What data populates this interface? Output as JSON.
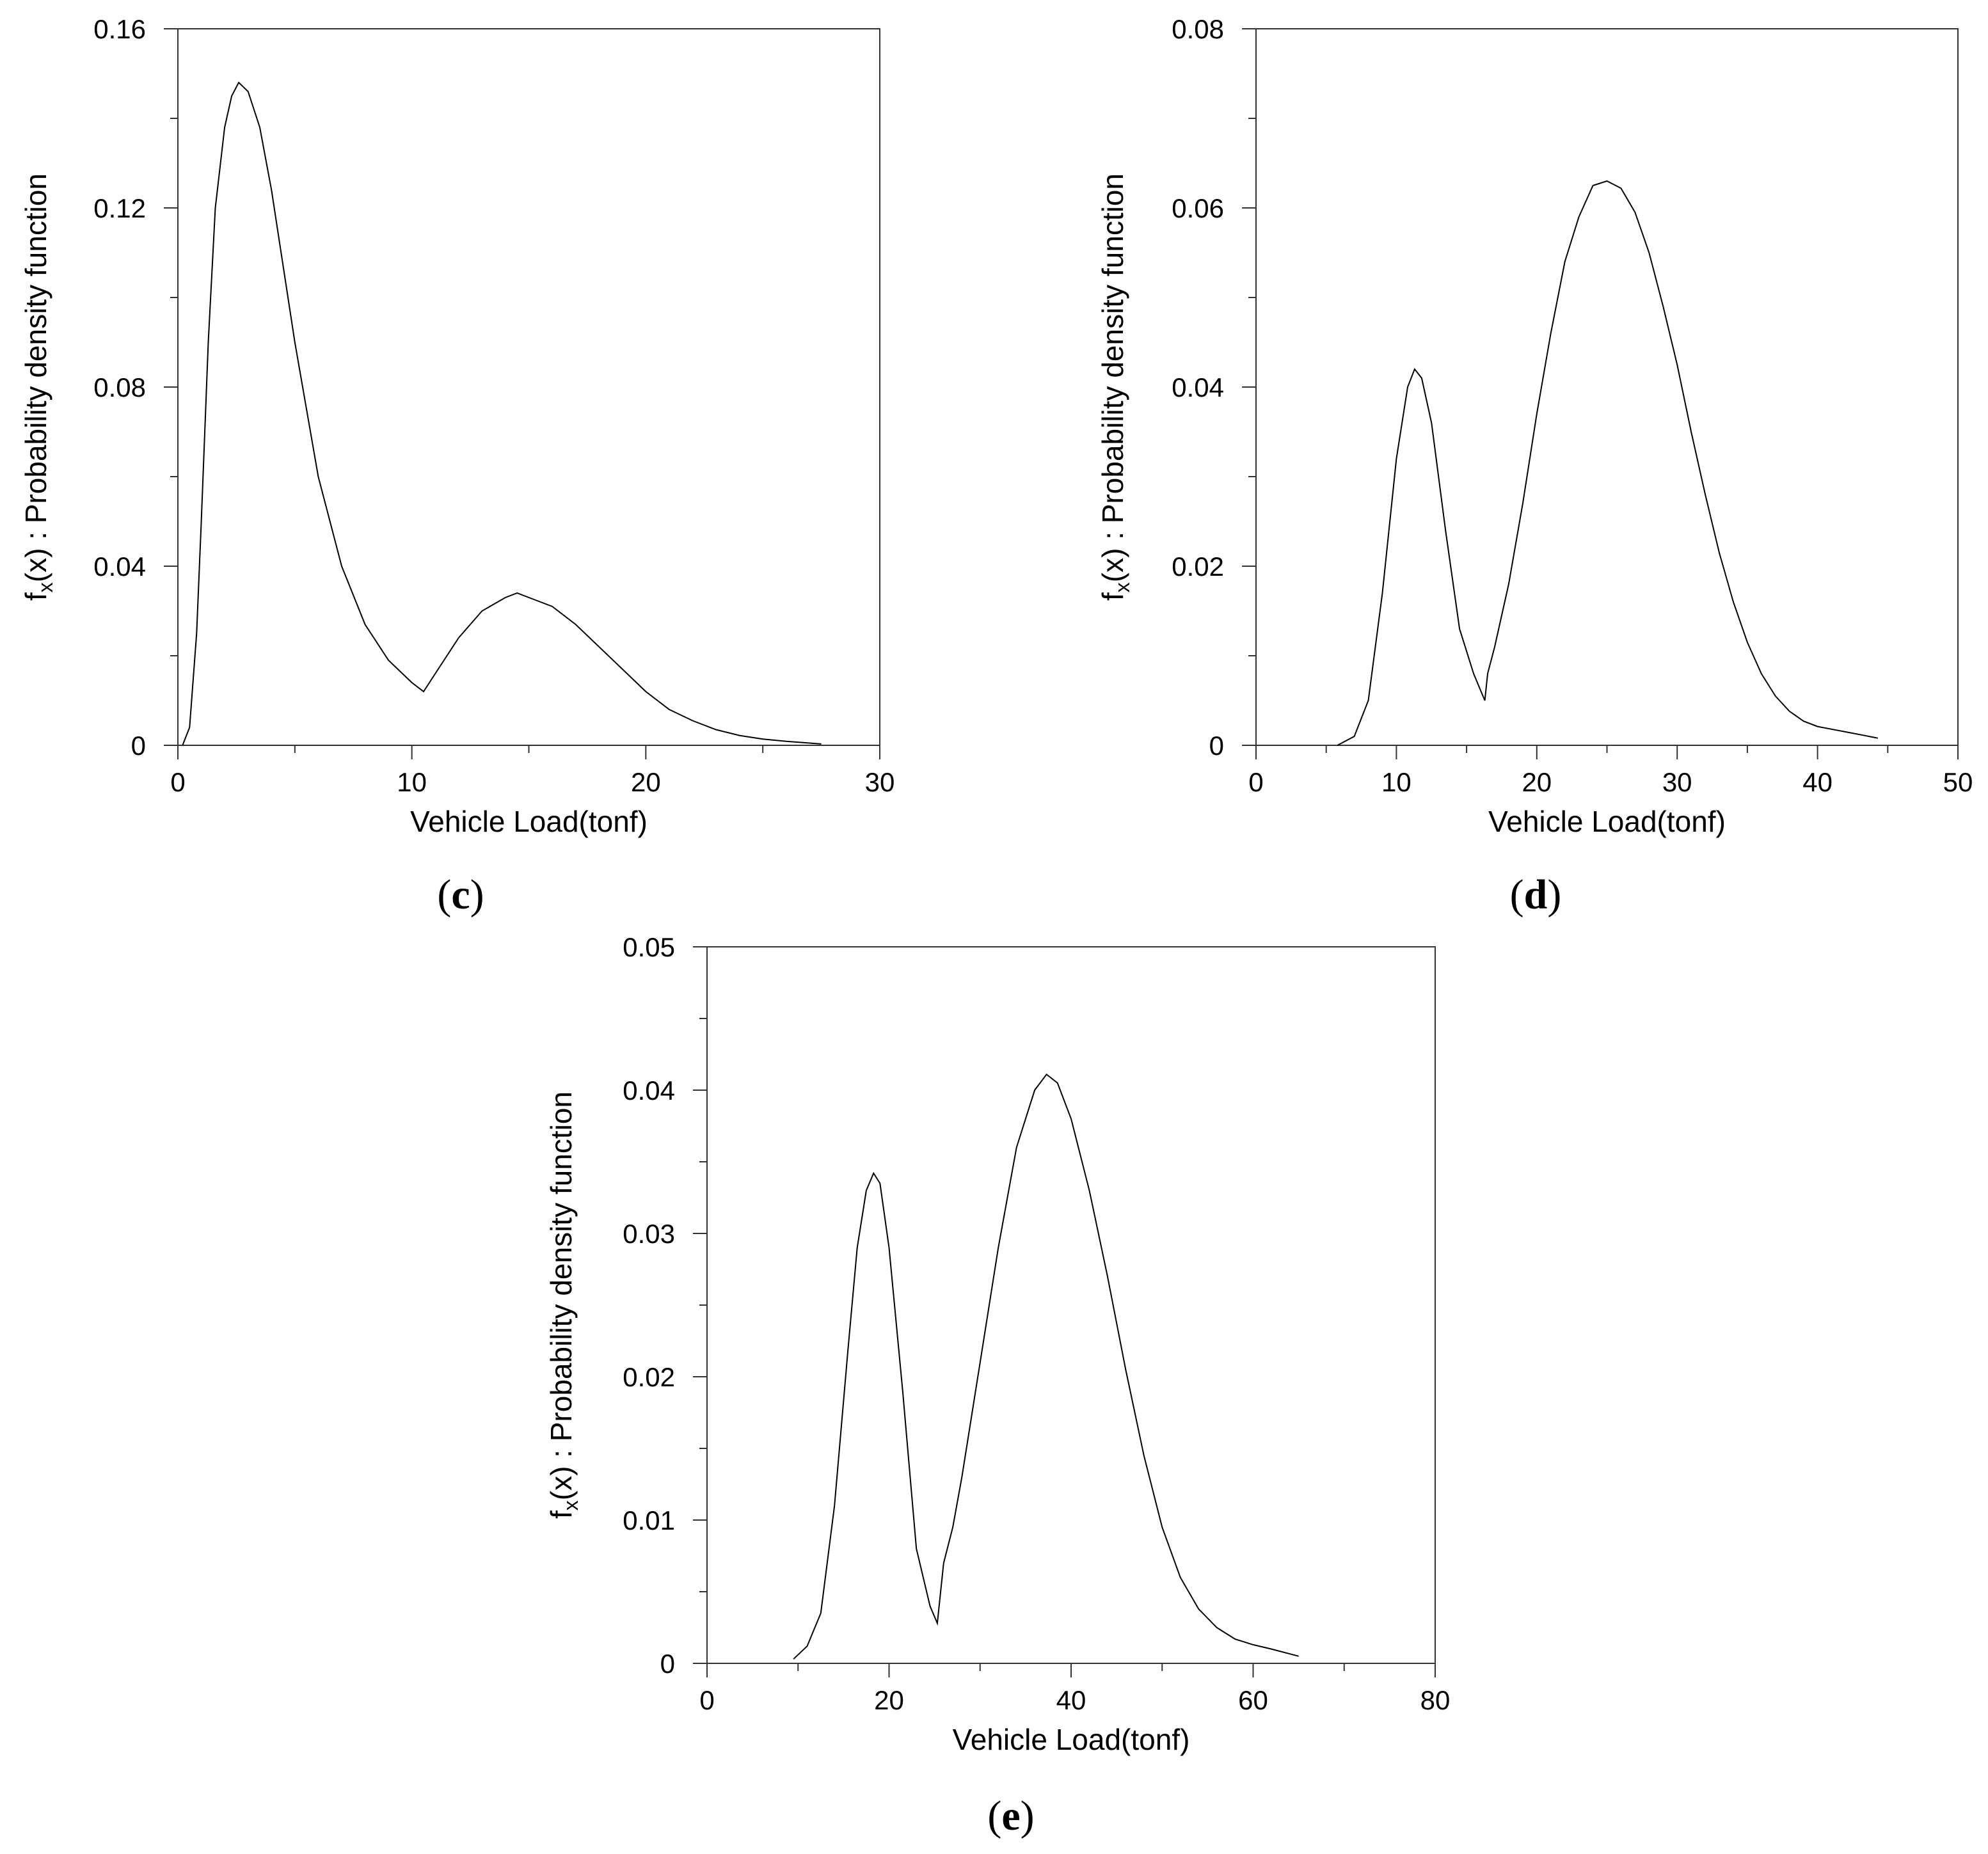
{
  "chart_data": [
    {
      "type": "line",
      "panel_label": "c",
      "xlabel": "Vehicle Load(tonf)",
      "ylabel": {
        "prefix": "f",
        "sub": "x",
        "rest": "(x) : Probability density function"
      },
      "xlim": [
        0,
        30
      ],
      "ylim": [
        0,
        0.16
      ],
      "xticks": [
        0,
        10,
        20,
        30
      ],
      "xtick_labels": [
        "0",
        "10",
        "20",
        "30"
      ],
      "x_minor_step": 5,
      "yticks": [
        0,
        0.04,
        0.08,
        0.12,
        0.16
      ],
      "ytick_labels": [
        "0",
        "0.04",
        "0.08",
        "0.12",
        "0.16"
      ],
      "y_minor_step": 0.02,
      "grid": false,
      "series": [
        {
          "x": [
            0.2,
            0.5,
            0.8,
            1.0,
            1.3,
            1.6,
            2.0,
            2.3,
            2.6,
            3.0,
            3.5,
            4.0,
            5.0,
            6.0,
            7.0,
            8.0,
            9.0,
            10.0,
            10.5,
            11.0,
            12.0,
            13.0,
            14.0,
            14.5,
            15.0,
            16.0,
            17.0,
            18.0,
            19.0,
            20.0,
            21.0,
            22.0,
            23.0,
            24.0,
            25.0,
            26.0,
            27.0,
            27.5
          ],
          "y": [
            0.0,
            0.004,
            0.025,
            0.05,
            0.09,
            0.12,
            0.138,
            0.145,
            0.148,
            0.146,
            0.138,
            0.124,
            0.09,
            0.06,
            0.04,
            0.027,
            0.019,
            0.014,
            0.012,
            0.016,
            0.024,
            0.03,
            0.033,
            0.034,
            0.033,
            0.031,
            0.027,
            0.022,
            0.017,
            0.012,
            0.008,
            0.0055,
            0.0035,
            0.0022,
            0.0014,
            0.0009,
            0.0005,
            0.0003
          ]
        }
      ]
    },
    {
      "type": "line",
      "panel_label": "d",
      "xlabel": "Vehicle Load(tonf)",
      "ylabel": {
        "prefix": "f",
        "sub": "x",
        "rest": "(x) : Probability density function"
      },
      "xlim": [
        0,
        50
      ],
      "ylim": [
        0,
        0.08
      ],
      "xticks": [
        0,
        10,
        20,
        30,
        40,
        50
      ],
      "xtick_labels": [
        "0",
        "10",
        "20",
        "30",
        "40",
        "50"
      ],
      "x_minor_step": 5,
      "yticks": [
        0,
        0.02,
        0.04,
        0.06,
        0.08
      ],
      "ytick_labels": [
        "0",
        "0.02",
        "0.04",
        "0.06",
        "0.08"
      ],
      "y_minor_step": 0.01,
      "grid": false,
      "series": [
        {
          "x": [
            5.8,
            7.0,
            8.0,
            9.0,
            10.0,
            10.8,
            11.3,
            11.8,
            12.5,
            13.5,
            14.5,
            15.5,
            16.3,
            16.5,
            17.0,
            18.0,
            19.0,
            20.0,
            21.0,
            22.0,
            23.0,
            24.0,
            25.0,
            26.0,
            27.0,
            28.0,
            29.0,
            30.0,
            31.0,
            32.0,
            33.0,
            34.0,
            35.0,
            36.0,
            37.0,
            38.0,
            39.0,
            40.0,
            41.0,
            42.0,
            43.0,
            44.3
          ],
          "y": [
            0.0,
            0.001,
            0.005,
            0.017,
            0.032,
            0.04,
            0.042,
            0.041,
            0.036,
            0.024,
            0.013,
            0.008,
            0.005,
            0.008,
            0.011,
            0.018,
            0.027,
            0.037,
            0.046,
            0.054,
            0.059,
            0.0625,
            0.063,
            0.0622,
            0.0595,
            0.055,
            0.049,
            0.0425,
            0.035,
            0.028,
            0.0215,
            0.016,
            0.0115,
            0.008,
            0.0055,
            0.0038,
            0.0027,
            0.0021,
            0.0018,
            0.0015,
            0.0012,
            0.0008
          ]
        }
      ]
    },
    {
      "type": "line",
      "panel_label": "e",
      "xlabel": "Vehicle Load(tonf)",
      "ylabel": {
        "prefix": "f",
        "sub": "x",
        "rest": "(x) : Probability density function"
      },
      "xlim": [
        0,
        80
      ],
      "ylim": [
        0,
        0.05
      ],
      "xticks": [
        0,
        20,
        40,
        60,
        80
      ],
      "xtick_labels": [
        "0",
        "20",
        "40",
        "60",
        "80"
      ],
      "x_minor_step": 10,
      "yticks": [
        0,
        0.01,
        0.02,
        0.03,
        0.04,
        0.05
      ],
      "ytick_labels": [
        "0",
        "0.01",
        "0.02",
        "0.03",
        "0.04",
        "0.05"
      ],
      "y_minor_step": 0.005,
      "grid": false,
      "series": [
        {
          "x": [
            9.5,
            11.0,
            12.5,
            14.0,
            15.5,
            16.5,
            17.5,
            18.3,
            19.0,
            20.0,
            21.5,
            23.0,
            24.5,
            25.3,
            26.0,
            27.0,
            28.0,
            30.0,
            32.0,
            34.0,
            36.0,
            37.3,
            38.5,
            40.0,
            42.0,
            44.0,
            46.0,
            48.0,
            50.0,
            52.0,
            54.0,
            56.0,
            58.0,
            60.0,
            62.0,
            65.0
          ],
          "y": [
            0.0003,
            0.0012,
            0.0035,
            0.011,
            0.022,
            0.029,
            0.033,
            0.0342,
            0.0335,
            0.029,
            0.019,
            0.008,
            0.004,
            0.0028,
            0.007,
            0.0095,
            0.013,
            0.021,
            0.029,
            0.036,
            0.04,
            0.0411,
            0.0405,
            0.038,
            0.033,
            0.027,
            0.0205,
            0.0145,
            0.0095,
            0.006,
            0.0038,
            0.0025,
            0.0017,
            0.0013,
            0.001,
            0.0005
          ]
        }
      ]
    }
  ]
}
